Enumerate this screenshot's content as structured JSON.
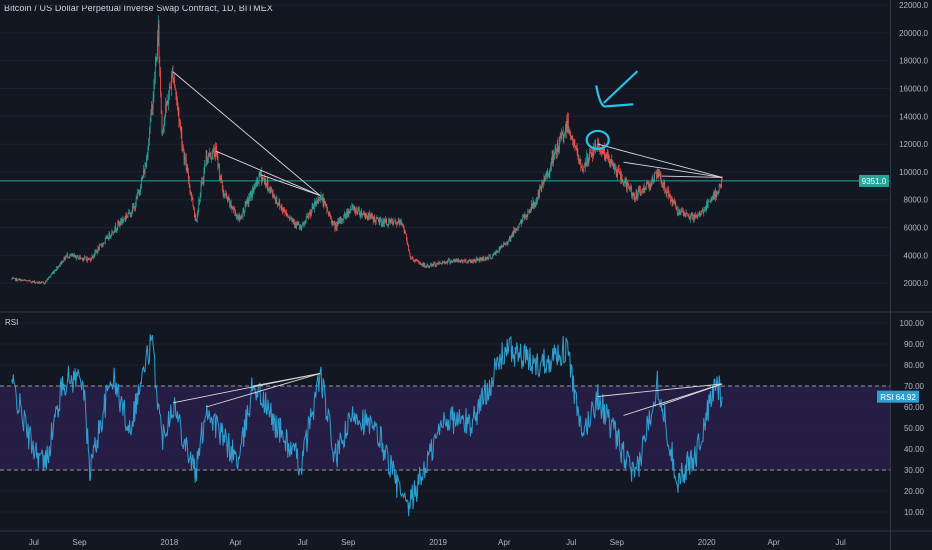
{
  "title": "Bitcoin / US Dollar Perpetual Inverse Swap Contract, 1D, BITMEX",
  "colors": {
    "background": "#131722",
    "grid": "#1e2230",
    "axis_text": "#b2b5be",
    "candle_up": "#26a69a",
    "candle_down": "#ef5350",
    "rsi_line": "#2f9fd0",
    "rsi_band": "#2a1f4a",
    "annotation_cyan": "#29c0e8",
    "trendline": "#d8d8d8",
    "price_line": "#26a69a"
  },
  "x_axis": {
    "tick_labels": [
      "Jul",
      "Sep",
      "2018",
      "Apr",
      "Jul",
      "Sep",
      "2019",
      "Apr",
      "Jul",
      "Sep",
      "2020",
      "Apr",
      "Jul"
    ]
  },
  "price_badge": "9351.0",
  "rsi_pane": {
    "label": "RSI",
    "badge_label": "RSI",
    "badge_value": "64.92"
  },
  "chart_data": [
    {
      "type": "candlestick",
      "pane": "price",
      "y_ticks": [
        "22000.0",
        "20000.0",
        "18000.0",
        "16000.0",
        "14000.0",
        "12000.0",
        "10000.0",
        "8000.0",
        "6000.0",
        "4000.0",
        "2000.0"
      ],
      "ylim": [
        0,
        22000
      ],
      "current_price": 9351.0,
      "price_path": [
        [
          "2017-06-01",
          2300
        ],
        [
          "2017-07-15",
          2000
        ],
        [
          "2017-08-15",
          4000
        ],
        [
          "2017-09-15",
          3700
        ],
        [
          "2017-10-20",
          6000
        ],
        [
          "2017-11-15",
          7500
        ],
        [
          "2017-11-30",
          10500
        ],
        [
          "2017-12-10",
          15500
        ],
        [
          "2017-12-17",
          20000
        ],
        [
          "2017-12-22",
          13000
        ],
        [
          "2018-01-06",
          17200
        ],
        [
          "2018-01-20",
          11500
        ],
        [
          "2018-02-06",
          6500
        ],
        [
          "2018-02-20",
          11000
        ],
        [
          "2018-03-05",
          11500
        ],
        [
          "2018-03-15",
          8500
        ],
        [
          "2018-04-06",
          6600
        ],
        [
          "2018-05-05",
          9800
        ],
        [
          "2018-06-01",
          7500
        ],
        [
          "2018-06-29",
          5900
        ],
        [
          "2018-07-25",
          8300
        ],
        [
          "2018-08-14",
          6000
        ],
        [
          "2018-09-05",
          7400
        ],
        [
          "2018-10-15",
          6400
        ],
        [
          "2018-11-14",
          6300
        ],
        [
          "2018-11-25",
          3800
        ],
        [
          "2018-12-15",
          3200
        ],
        [
          "2019-01-15",
          3600
        ],
        [
          "2019-02-15",
          3600
        ],
        [
          "2019-03-15",
          3900
        ],
        [
          "2019-04-05",
          5000
        ],
        [
          "2019-05-15",
          8000
        ],
        [
          "2019-06-26",
          13500
        ],
        [
          "2019-07-15",
          10200
        ],
        [
          "2019-08-06",
          12000
        ],
        [
          "2019-09-01",
          10000
        ],
        [
          "2019-09-26",
          8200
        ],
        [
          "2019-10-26",
          9800
        ],
        [
          "2019-11-25",
          7000
        ],
        [
          "2019-12-18",
          6700
        ],
        [
          "2020-01-10",
          8100
        ],
        [
          "2020-01-22",
          9351
        ]
      ]
    },
    {
      "type": "line",
      "pane": "rsi",
      "name": "RSI",
      "y_ticks": [
        "100.00",
        "90.00",
        "80.00",
        "70.00",
        "60.00",
        "50.00",
        "40.00",
        "30.00",
        "20.00",
        "10.00"
      ],
      "ylim": [
        0,
        100
      ],
      "bands": [
        30,
        70
      ],
      "rsi_path": [
        [
          "2017-06-01",
          72
        ],
        [
          "2017-06-25",
          45
        ],
        [
          "2017-07-16",
          32
        ],
        [
          "2017-08-10",
          72
        ],
        [
          "2017-09-05",
          75
        ],
        [
          "2017-09-15",
          30
        ],
        [
          "2017-10-15",
          75
        ],
        [
          "2017-11-08",
          50
        ],
        [
          "2017-12-08",
          92
        ],
        [
          "2017-12-22",
          45
        ],
        [
          "2018-01-06",
          62
        ],
        [
          "2018-02-06",
          28
        ],
        [
          "2018-02-20",
          60
        ],
        [
          "2018-03-15",
          45
        ],
        [
          "2018-04-06",
          34
        ],
        [
          "2018-04-25",
          72
        ],
        [
          "2018-05-20",
          55
        ],
        [
          "2018-06-29",
          32
        ],
        [
          "2018-07-25",
          76
        ],
        [
          "2018-08-14",
          35
        ],
        [
          "2018-09-10",
          58
        ],
        [
          "2018-10-15",
          45
        ],
        [
          "2018-11-20",
          10
        ],
        [
          "2018-12-15",
          32
        ],
        [
          "2019-01-10",
          55
        ],
        [
          "2019-02-15",
          52
        ],
        [
          "2019-04-03",
          88
        ],
        [
          "2019-05-15",
          80
        ],
        [
          "2019-06-26",
          88
        ],
        [
          "2019-07-15",
          45
        ],
        [
          "2019-08-06",
          65
        ],
        [
          "2019-09-26",
          25
        ],
        [
          "2019-10-26",
          72
        ],
        [
          "2019-11-22",
          25
        ],
        [
          "2019-12-18",
          38
        ],
        [
          "2020-01-14",
          72
        ],
        [
          "2020-01-22",
          64.92
        ]
      ]
    }
  ],
  "annotations": {
    "price_trendlines": [
      [
        [
          "2018-01-06",
          17200
        ],
        [
          "2018-07-25",
          8300
        ]
      ],
      [
        [
          "2018-03-05",
          11500
        ],
        [
          "2018-07-25",
          8300
        ]
      ],
      [
        [
          "2018-05-05",
          9800
        ],
        [
          "2018-07-25",
          8300
        ]
      ],
      [
        [
          "2019-08-06",
          12000
        ],
        [
          "2020-01-22",
          9600
        ]
      ],
      [
        [
          "2019-09-10",
          10700
        ],
        [
          "2020-01-22",
          9600
        ]
      ],
      [
        [
          "2019-11-01",
          9700
        ],
        [
          "2020-01-22",
          9600
        ]
      ]
    ],
    "rsi_trendlines": [
      [
        [
          "2018-01-06",
          62
        ],
        [
          "2018-07-25",
          76
        ]
      ],
      [
        [
          "2018-02-20",
          60
        ],
        [
          "2018-07-25",
          76
        ]
      ],
      [
        [
          "2018-04-25",
          70
        ],
        [
          "2018-07-25",
          76
        ]
      ],
      [
        [
          "2019-08-06",
          65
        ],
        [
          "2020-01-22",
          71
        ]
      ],
      [
        [
          "2019-09-10",
          56
        ],
        [
          "2020-01-22",
          71
        ]
      ],
      [
        [
          "2019-11-01",
          61
        ],
        [
          "2020-01-22",
          71
        ]
      ]
    ],
    "circle_at": [
      "2019-08-06",
      12300
    ],
    "arrow_from": [
      "2019-09-28",
      17200
    ],
    "arrow_to": [
      "2019-08-15",
      15000
    ]
  }
}
